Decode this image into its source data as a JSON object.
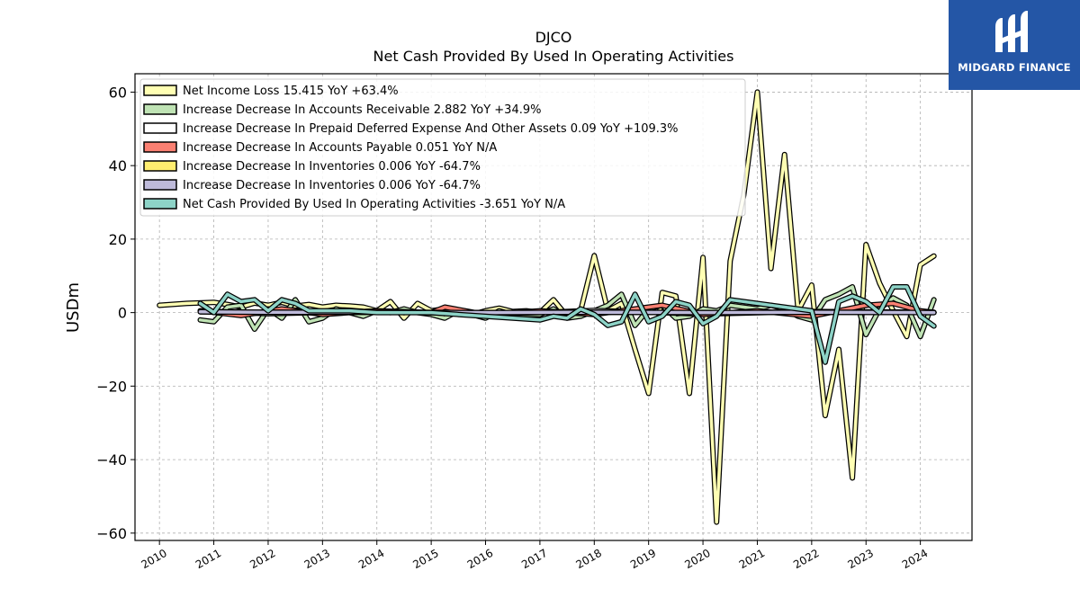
{
  "brand": {
    "name": "MIDGARD FINANCE",
    "color": "#2456a6",
    "icon": "midgard-logo-icon"
  },
  "chart_data": {
    "type": "line",
    "ticker": "DJCO",
    "title": "Net Cash Provided By Used In Operating Activities",
    "xlabel": "",
    "ylabel": "USDm",
    "xlim": [
      2009.55,
      2024.95
    ],
    "ylim": [
      -62,
      65
    ],
    "x_ticks": [
      "2010",
      "2011",
      "2012",
      "2013",
      "2014",
      "2015",
      "2016",
      "2017",
      "2018",
      "2019",
      "2020",
      "2021",
      "2022",
      "2023",
      "2024"
    ],
    "y_ticks": [
      -60,
      -40,
      -20,
      0,
      20,
      40,
      60
    ],
    "y_tick_labels": [
      "−60",
      "−40",
      "−20",
      "0",
      "20",
      "40",
      "60"
    ],
    "grid": true,
    "legend_position": "top-left",
    "series": [
      {
        "name": "Net Income Loss",
        "legend": "Net Income Loss  15.415 YoY +63.4%",
        "color": "#ffffb3",
        "x": [
          2010,
          2010.5,
          2011,
          2011.25,
          2011.5,
          2011.75,
          2012,
          2012.25,
          2012.5,
          2012.75,
          2013,
          2013.25,
          2013.5,
          2013.75,
          2014,
          2014.25,
          2014.5,
          2014.75,
          2015,
          2015.25,
          2015.5,
          2015.75,
          2016,
          2016.25,
          2016.5,
          2016.75,
          2017,
          2017.25,
          2017.5,
          2017.75,
          2018,
          2018.25,
          2018.5,
          2018.75,
          2019,
          2019.25,
          2019.5,
          2019.75,
          2020,
          2020.25,
          2020.5,
          2020.75,
          2021,
          2021.25,
          2021.5,
          2021.75,
          2022,
          2022.25,
          2022.5,
          2022.75,
          2023,
          2023.25,
          2023.5,
          2023.75,
          2024,
          2024.25
        ],
        "values": [
          2.0,
          2.5,
          2.8,
          2.2,
          1.5,
          2.6,
          2.0,
          2.8,
          1.8,
          2.2,
          1.5,
          2.0,
          1.8,
          1.5,
          0.5,
          3.0,
          -1.5,
          2.5,
          0.5,
          1.0,
          0.5,
          -0.5,
          0.5,
          1.2,
          0.3,
          0.5,
          0.0,
          3.5,
          -1.0,
          0.5,
          15.5,
          0.5,
          2.5,
          -10.0,
          -22.0,
          5.5,
          4.5,
          -22.0,
          15.0,
          -57.0,
          14.0,
          32.0,
          60.0,
          12.0,
          43.0,
          0.5,
          7.5,
          -28.0,
          -10.0,
          -45.0,
          18.5,
          8.0,
          0.5,
          -6.5,
          13.0,
          15.4
        ]
      },
      {
        "name": "Increase Decrease In Accounts Receivable",
        "legend": "Increase Decrease In Accounts Receivable  2.882 YoY +34.9%",
        "color": "#bfe3b4",
        "x": [
          2010.75,
          2011,
          2011.25,
          2011.5,
          2011.75,
          2012,
          2012.25,
          2012.5,
          2012.75,
          2013,
          2013.25,
          2013.5,
          2013.75,
          2014,
          2014.25,
          2014.5,
          2014.75,
          2015,
          2015.25,
          2015.5,
          2015.75,
          2016,
          2016.25,
          2016.5,
          2016.75,
          2017,
          2017.25,
          2017.5,
          2017.75,
          2018,
          2018.25,
          2018.5,
          2018.75,
          2019,
          2019.25,
          2019.5,
          2019.75,
          2020,
          2020.25,
          2020.5,
          2020.75,
          2021,
          2021.25,
          2021.5,
          2021.75,
          2022,
          2022.25,
          2022.5,
          2022.75,
          2023,
          2023.25,
          2023.5,
          2023.75,
          2024,
          2024.25
        ],
        "values": [
          -2.0,
          -2.5,
          1.5,
          2.0,
          -4.5,
          1.0,
          -1.5,
          3.5,
          -2.5,
          -1.5,
          1.0,
          0.0,
          -1.0,
          0.5,
          0.0,
          1.0,
          0.0,
          -0.5,
          -1.5,
          0.5,
          -0.5,
          -1.5,
          0.5,
          -0.5,
          -0.5,
          -0.5,
          1.0,
          -1.5,
          -1.0,
          0.5,
          2.0,
          5.0,
          -3.5,
          1.0,
          2.0,
          -1.5,
          -1.0,
          1.0,
          0.5,
          2.0,
          1.5,
          1.0,
          2.0,
          1.0,
          -1.0,
          -2.0,
          3.5,
          5.0,
          7.0,
          -6.0,
          1.0,
          4.0,
          2.0,
          -6.5,
          3.5
        ]
      },
      {
        "name": "Increase Decrease In Prepaid Deferred Expense And Other Assets",
        "legend": "Increase Decrease In Prepaid Deferred Expense And Other Assets  0.09 YoY +109.3%",
        "color": "#ffffff",
        "x": [
          2010.75,
          2012,
          2014,
          2016,
          2018,
          2020,
          2022,
          2024.25
        ],
        "values": [
          0.5,
          -0.3,
          0.4,
          -0.5,
          0.6,
          -0.4,
          0.3,
          0.09
        ]
      },
      {
        "name": "Increase Decrease In Accounts Payable",
        "legend": "Increase Decrease In Accounts Payable  0.051 YoY N/A",
        "color": "#fb8072",
        "x": [
          2010.75,
          2011.5,
          2012.25,
          2013,
          2014,
          2015,
          2015.25,
          2016,
          2017,
          2018,
          2019,
          2019.25,
          2020,
          2021,
          2022,
          2023,
          2023.5,
          2024,
          2024.25
        ],
        "values": [
          0.5,
          -0.8,
          1.0,
          -0.5,
          0.5,
          0.0,
          1.5,
          -0.5,
          0.5,
          -0.5,
          1.5,
          2.0,
          -0.5,
          0.5,
          -1.0,
          2.0,
          2.5,
          0.5,
          0.05
        ]
      },
      {
        "name": "Increase Decrease In Inventories",
        "legend": "Increase Decrease In Inventories  0.006 YoY -64.7%",
        "color": "#ffed6f",
        "x": [
          2010.75,
          2012,
          2014,
          2016,
          2018,
          2020,
          2022,
          2024.25
        ],
        "values": [
          0.2,
          0.1,
          0.1,
          0.0,
          0.1,
          0.0,
          0.1,
          0.006
        ]
      },
      {
        "name": "Increase Decrease In Inventories",
        "legend": "Increase Decrease In Inventories  0.006 YoY -64.7%",
        "color": "#bebada",
        "x": [
          2010.75,
          2012,
          2014,
          2016,
          2018,
          2020,
          2022,
          2024.25
        ],
        "values": [
          0.2,
          0.1,
          0.1,
          0.0,
          0.1,
          0.0,
          0.1,
          0.006
        ]
      },
      {
        "name": "Net Cash Provided By Used In Operating Activities",
        "legend": "Net Cash Provided By Used In Operating Activities  -3.651 YoY N/A",
        "color": "#8dd3c7",
        "x": [
          2010.75,
          2011,
          2011.25,
          2011.5,
          2011.75,
          2012,
          2012.25,
          2012.5,
          2012.75,
          2013,
          2013.5,
          2014,
          2014.5,
          2015,
          2015.5,
          2016,
          2016.5,
          2017,
          2017.25,
          2017.5,
          2017.75,
          2018,
          2018.25,
          2018.5,
          2018.75,
          2019,
          2019.25,
          2019.5,
          2019.75,
          2020,
          2020.25,
          2020.5,
          2022,
          2022.25,
          2022.5,
          2022.75,
          2023,
          2023.25,
          2023.5,
          2023.75,
          2024,
          2024.25
        ],
        "values": [
          2.5,
          0.0,
          5.0,
          3.0,
          3.5,
          0.5,
          3.5,
          2.5,
          0.5,
          0.5,
          0.5,
          0.0,
          0.0,
          0.0,
          -0.5,
          -1.0,
          -1.5,
          -2.0,
          -1.0,
          -1.5,
          1.0,
          -0.5,
          -3.5,
          -2.5,
          5.0,
          -2.5,
          -1.0,
          3.0,
          2.0,
          -3.0,
          -1.0,
          3.5,
          0.5,
          -13.5,
          3.0,
          4.5,
          3.0,
          0.0,
          7.0,
          7.0,
          -1.0,
          -3.651
        ]
      }
    ]
  }
}
